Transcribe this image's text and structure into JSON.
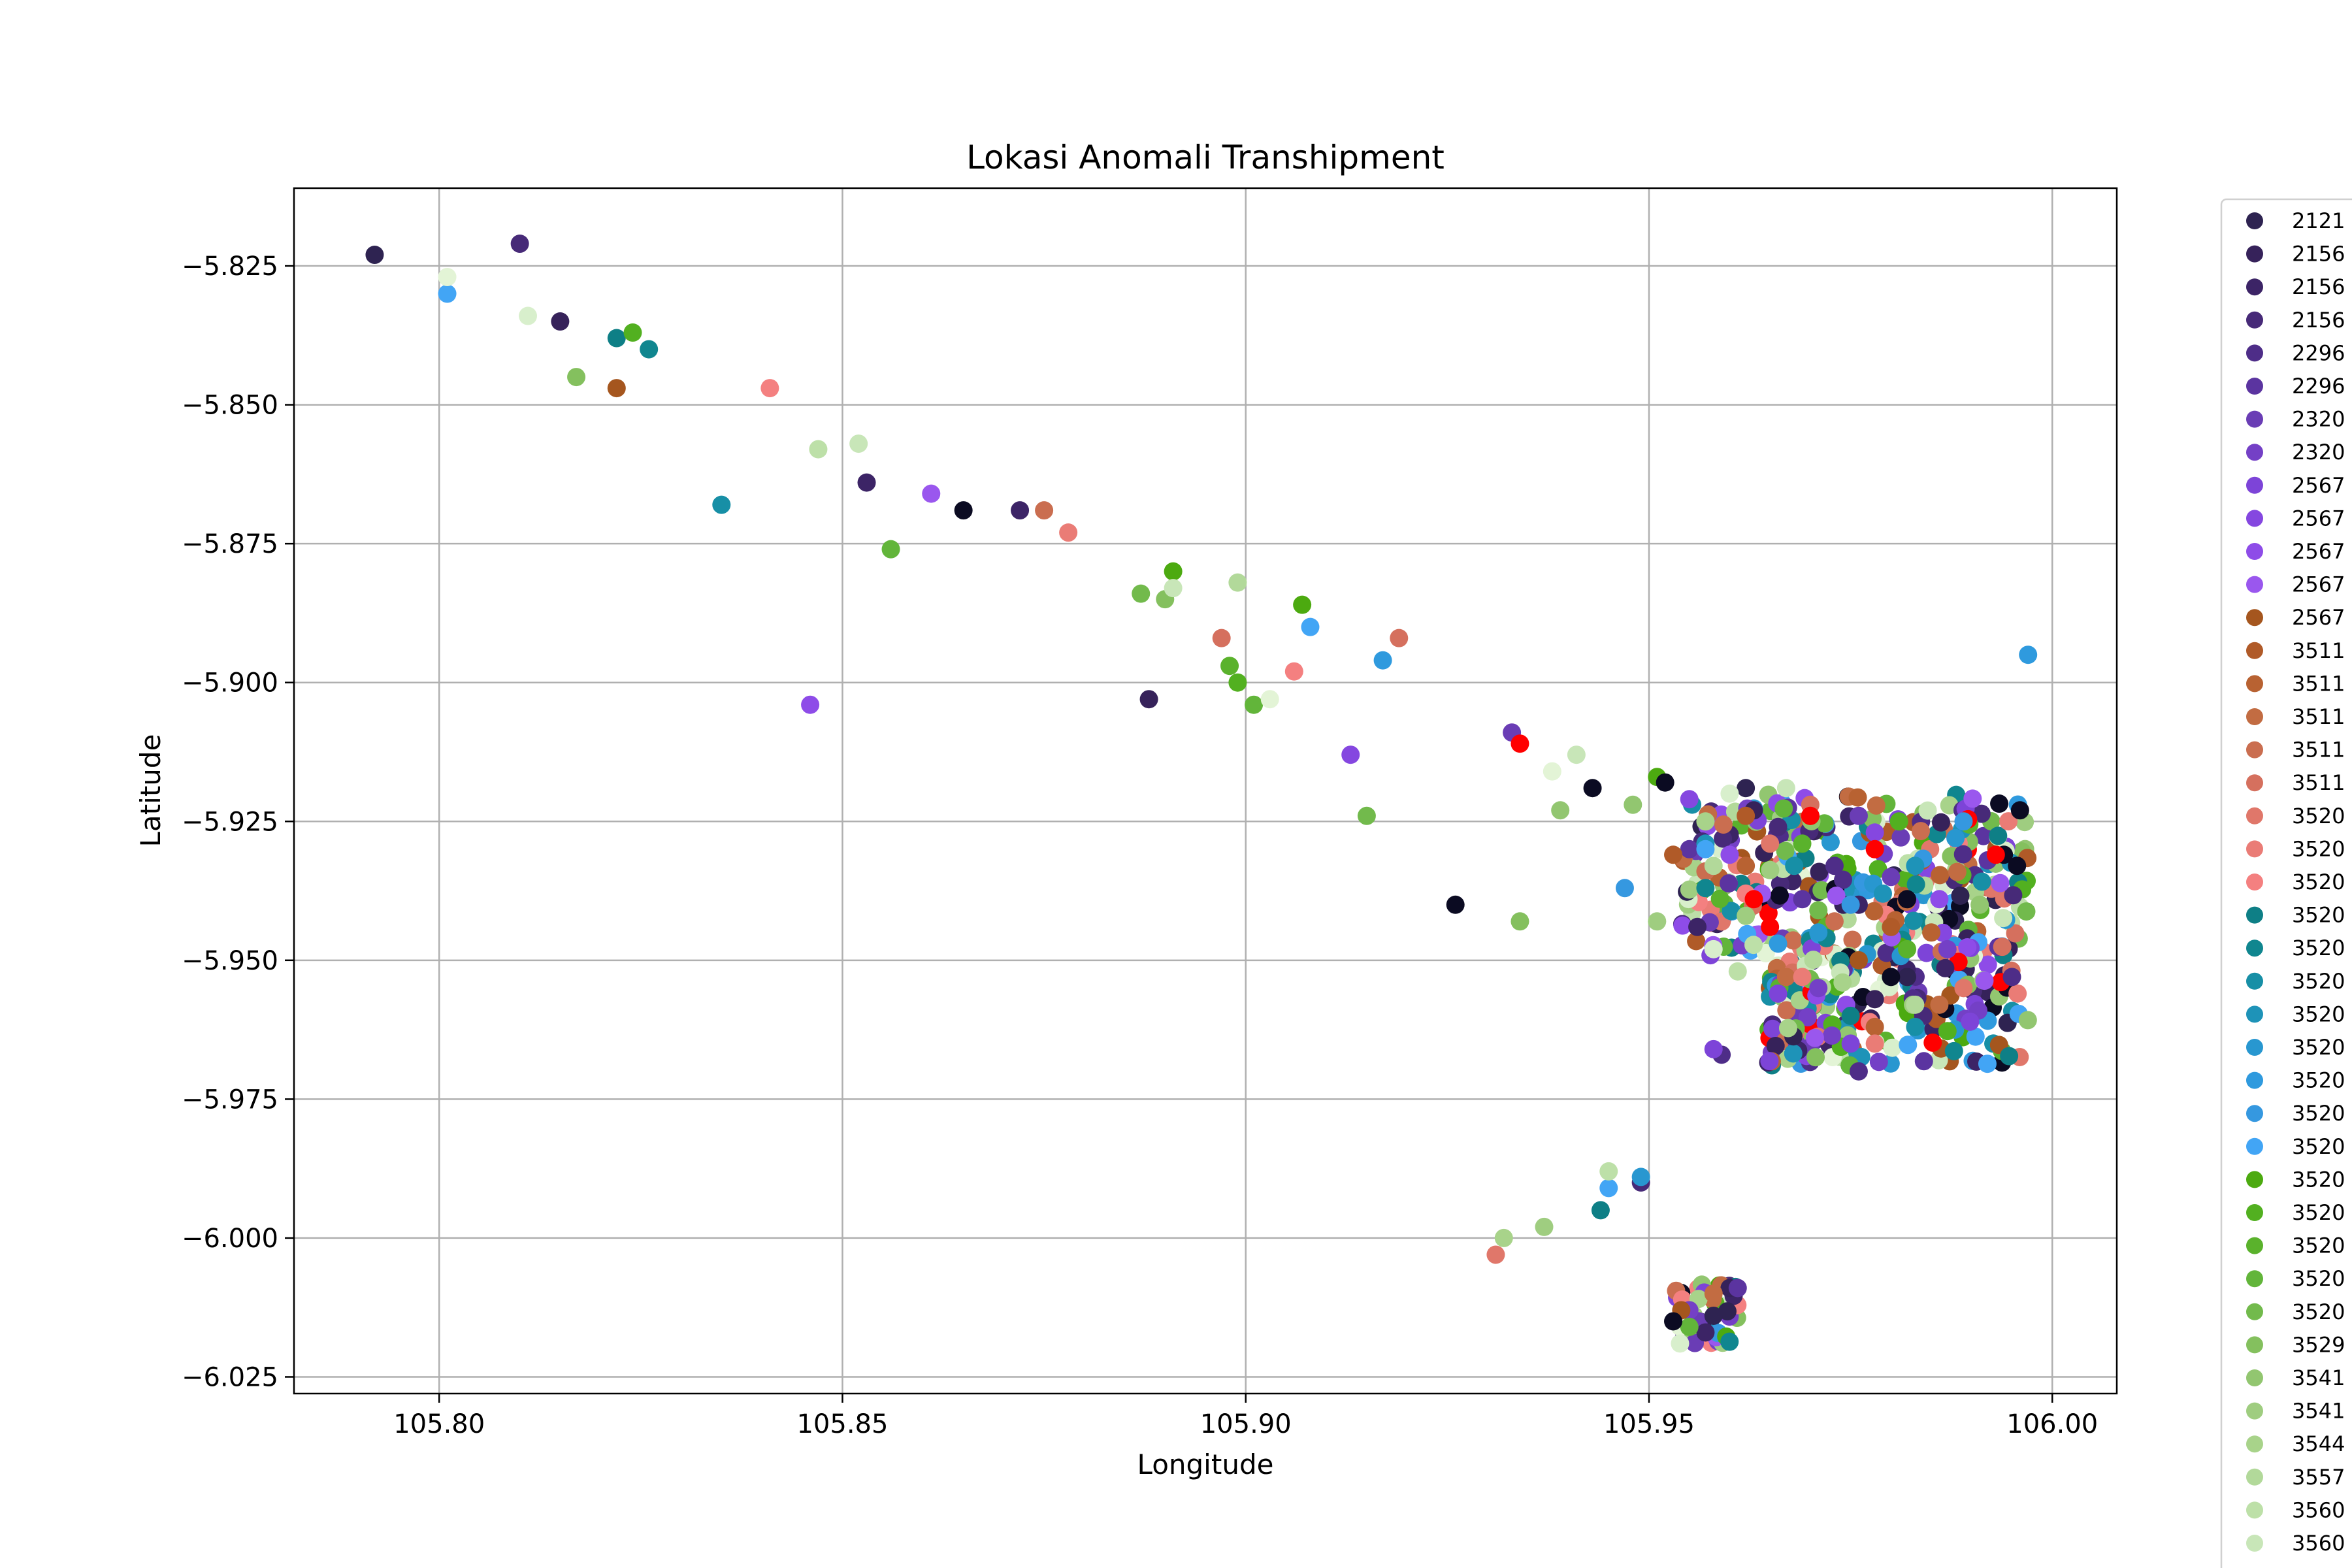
{
  "chart_data": {
    "type": "scatter",
    "title": "Lokasi Anomali Transhipment",
    "xlabel": "Longitude",
    "ylabel": "Latitude",
    "xlim": [
      105.782,
      106.008
    ],
    "ylim": [
      -6.028,
      -5.811
    ],
    "x_ticks": [
      105.8,
      105.85,
      105.9,
      105.95,
      106.0
    ],
    "x_tick_labels": [
      "105.80",
      "105.85",
      "105.90",
      "105.95",
      "106.00"
    ],
    "y_ticks": [
      -5.825,
      -5.85,
      -5.875,
      -5.9,
      -5.925,
      -5.95,
      -5.975,
      -6.0,
      -6.025
    ],
    "y_tick_labels": [
      "−5.825",
      "−5.850",
      "−5.875",
      "−5.900",
      "−5.925",
      "−5.950",
      "−5.975",
      "−6.000",
      "−6.025"
    ],
    "grid": true,
    "legend_position": "right, outside, clipped",
    "legend": [
      {
        "label": "2121",
        "color": "#2e2351"
      },
      {
        "label": "2156",
        "color": "#36225a"
      },
      {
        "label": "2156",
        "color": "#3c2466"
      },
      {
        "label": "2156",
        "color": "#472a78"
      },
      {
        "label": "2296",
        "color": "#4e2d88"
      },
      {
        "label": "2296",
        "color": "#5b34a0"
      },
      {
        "label": "2320",
        "color": "#6a3db5"
      },
      {
        "label": "2320",
        "color": "#7440c6"
      },
      {
        "label": "2567",
        "color": "#7d44d8"
      },
      {
        "label": "2567",
        "color": "#8547e0"
      },
      {
        "label": "2567",
        "color": "#8e4ce8"
      },
      {
        "label": "2567",
        "color": "#9a57ee"
      },
      {
        "label": "2567",
        "color": "#a5561e"
      },
      {
        "label": "3511",
        "color": "#b05a28"
      },
      {
        "label": "3511",
        "color": "#b86232"
      },
      {
        "label": "3511",
        "color": "#c26c42"
      },
      {
        "label": "3511",
        "color": "#ca6e50"
      },
      {
        "label": "3511",
        "color": "#d5705e"
      },
      {
        "label": "3520",
        "color": "#e0776a"
      },
      {
        "label": "3520",
        "color": "#ea7c76"
      },
      {
        "label": "3520",
        "color": "#f48080"
      },
      {
        "label": "3520",
        "color": "#0e7f86"
      },
      {
        "label": "3520",
        "color": "#10868f"
      },
      {
        "label": "3520",
        "color": "#178fa6"
      },
      {
        "label": "3520",
        "color": "#1e93b8"
      },
      {
        "label": "3520",
        "color": "#2897d0"
      },
      {
        "label": "3520",
        "color": "#2f9ade"
      },
      {
        "label": "3520",
        "color": "#3598e0"
      },
      {
        "label": "3520",
        "color": "#42a5f5"
      },
      {
        "label": "3520",
        "color": "#4caa10"
      },
      {
        "label": "3520",
        "color": "#52b020"
      },
      {
        "label": "3520",
        "color": "#5ab22c"
      },
      {
        "label": "3520",
        "color": "#62b53a"
      },
      {
        "label": "3520",
        "color": "#72ba4c"
      },
      {
        "label": "3529",
        "color": "#84c05e"
      },
      {
        "label": "3541",
        "color": "#92c670"
      },
      {
        "label": "3541",
        "color": "#9fcd80"
      },
      {
        "label": "3544",
        "color": "#a8d38a"
      },
      {
        "label": "3557",
        "color": "#b2d99a"
      },
      {
        "label": "3560",
        "color": "#bde0a8"
      },
      {
        "label": "3560",
        "color": "#c8e6b8"
      }
    ],
    "series": [
      {
        "color": "#2e2351",
        "points": [
          [
            105.792,
            -5.823
          ],
          [
            105.962,
            -5.919
          ],
          [
            105.972,
            -5.946
          ],
          [
            105.982,
            -5.953
          ],
          [
            105.958,
            -6.014
          ]
        ]
      },
      {
        "color": "#36225a",
        "points": [
          [
            105.815,
            -5.835
          ],
          [
            105.888,
            -5.903
          ],
          [
            105.963,
            -5.923
          ],
          [
            105.978,
            -5.957
          ],
          [
            105.96,
            -6.009
          ]
        ]
      },
      {
        "color": "#3c2466",
        "points": [
          [
            105.853,
            -5.864
          ],
          [
            105.872,
            -5.869
          ],
          [
            105.956,
            -5.944
          ],
          [
            105.976,
            -5.94
          ],
          [
            105.957,
            -6.017
          ]
        ]
      },
      {
        "color": "#472a78",
        "points": [
          [
            105.81,
            -5.821
          ],
          [
            105.949,
            -5.99
          ],
          [
            105.966,
            -5.926
          ],
          [
            105.984,
            -5.96
          ]
        ]
      },
      {
        "color": "#4e2d88",
        "points": [
          [
            105.959,
            -5.967
          ],
          [
            105.976,
            -5.97
          ],
          [
            105.973,
            -5.933
          ],
          [
            105.995,
            -5.953
          ]
        ]
      },
      {
        "color": "#5b34a0",
        "points": [
          [
            105.961,
            -6.009
          ],
          [
            105.955,
            -5.93
          ],
          [
            105.969,
            -5.939
          ],
          [
            105.992,
            -5.932
          ]
        ]
      },
      {
        "color": "#6a3db5",
        "points": [
          [
            105.933,
            -5.909
          ],
          [
            105.976,
            -5.924
          ],
          [
            105.98,
            -5.935
          ]
        ]
      },
      {
        "color": "#7440c6",
        "points": [
          [
            105.955,
            -6.013
          ],
          [
            105.971,
            -5.955
          ],
          [
            105.987,
            -5.948
          ]
        ]
      },
      {
        "color": "#7d44d8",
        "points": [
          [
            105.958,
            -5.966
          ],
          [
            105.966,
            -5.956
          ],
          [
            105.975,
            -5.965
          ]
        ]
      },
      {
        "color": "#8547e0",
        "points": [
          [
            105.913,
            -5.913
          ],
          [
            105.955,
            -5.921
          ],
          [
            105.978,
            -5.927
          ]
        ]
      },
      {
        "color": "#8e4ce8",
        "points": [
          [
            105.846,
            -5.904
          ],
          [
            105.96,
            -5.931
          ],
          [
            105.986,
            -5.939
          ]
        ]
      },
      {
        "color": "#9a57ee",
        "points": [
          [
            105.861,
            -5.866
          ],
          [
            105.964,
            -5.938
          ]
        ]
      },
      {
        "color": "#a5561e",
        "points": [
          [
            105.822,
            -5.847
          ],
          [
            105.954,
            -6.013
          ],
          [
            105.976,
            -5.95
          ]
        ]
      },
      {
        "color": "#b05a28",
        "points": [
          [
            105.953,
            -5.931
          ],
          [
            105.962,
            -5.924
          ],
          [
            105.98,
            -5.944
          ]
        ]
      },
      {
        "color": "#b86232",
        "points": [
          [
            105.962,
            -5.933
          ],
          [
            105.978,
            -5.962
          ],
          [
            105.985,
            -5.945
          ]
        ]
      },
      {
        "color": "#c26c42",
        "points": [
          [
            105.958,
            -6.01
          ],
          [
            105.967,
            -5.953
          ],
          [
            105.986,
            -5.958
          ]
        ]
      },
      {
        "color": "#ca6e50",
        "points": [
          [
            105.875,
            -5.869
          ],
          [
            105.957,
            -5.934
          ],
          [
            105.973,
            -5.943
          ]
        ]
      },
      {
        "color": "#d5705e",
        "points": [
          [
            105.897,
            -5.892
          ],
          [
            105.919,
            -5.892
          ],
          [
            105.97,
            -5.922
          ]
        ]
      },
      {
        "color": "#e0776a",
        "points": [
          [
            105.931,
            -6.003
          ],
          [
            105.965,
            -5.929
          ],
          [
            105.989,
            -5.955
          ]
        ]
      },
      {
        "color": "#ea7c76",
        "points": [
          [
            105.878,
            -5.873
          ],
          [
            105.978,
            -5.965
          ],
          [
            105.969,
            -5.953
          ]
        ]
      },
      {
        "color": "#f48080",
        "points": [
          [
            105.841,
            -5.847
          ],
          [
            105.906,
            -5.898
          ],
          [
            105.962,
            -5.938
          ]
        ]
      },
      {
        "color": "#0e7f86",
        "points": [
          [
            105.822,
            -5.838
          ],
          [
            105.944,
            -5.995
          ],
          [
            105.975,
            -5.96
          ]
        ]
      },
      {
        "color": "#10868f",
        "points": [
          [
            105.826,
            -5.84
          ],
          [
            105.957,
            -5.937
          ],
          [
            105.972,
            -5.946
          ]
        ]
      },
      {
        "color": "#178fa6",
        "points": [
          [
            105.835,
            -5.868
          ],
          [
            105.968,
            -5.933
          ],
          [
            105.983,
            -5.962
          ]
        ]
      },
      {
        "color": "#1e93b8",
        "points": [
          [
            105.957,
            -5.929
          ],
          [
            105.979,
            -5.938
          ],
          [
            105.983,
            -5.933
          ]
        ]
      },
      {
        "color": "#2897d0",
        "points": [
          [
            105.949,
            -5.989
          ],
          [
            105.971,
            -5.945
          ],
          [
            105.988,
            -5.928
          ]
        ]
      },
      {
        "color": "#2f9ade",
        "points": [
          [
            105.917,
            -5.896
          ],
          [
            105.966,
            -5.947
          ],
          [
            105.997,
            -5.895
          ]
        ]
      },
      {
        "color": "#3598e0",
        "points": [
          [
            105.947,
            -5.937
          ],
          [
            105.975,
            -5.94
          ],
          [
            105.989,
            -5.925
          ]
        ]
      },
      {
        "color": "#42a5f5",
        "points": [
          [
            105.801,
            -5.83
          ],
          [
            105.908,
            -5.89
          ],
          [
            105.945,
            -5.991
          ],
          [
            105.957,
            -5.93
          ]
        ]
      },
      {
        "color": "#4caa10",
        "points": [
          [
            105.891,
            -5.88
          ],
          [
            105.907,
            -5.886
          ],
          [
            105.951,
            -5.917
          ]
        ]
      },
      {
        "color": "#52b020",
        "points": [
          [
            105.824,
            -5.837
          ],
          [
            105.899,
            -5.9
          ],
          [
            105.981,
            -5.925
          ]
        ]
      },
      {
        "color": "#5ab22c",
        "points": [
          [
            105.898,
            -5.897
          ],
          [
            105.969,
            -5.929
          ],
          [
            105.982,
            -5.948
          ]
        ]
      },
      {
        "color": "#62b53a",
        "points": [
          [
            105.856,
            -5.876
          ],
          [
            105.901,
            -5.904
          ],
          [
            105.955,
            -6.016
          ]
        ]
      },
      {
        "color": "#72ba4c",
        "points": [
          [
            105.887,
            -5.884
          ],
          [
            105.915,
            -5.924
          ],
          [
            105.971,
            -5.941
          ]
        ]
      },
      {
        "color": "#84c05e",
        "points": [
          [
            105.817,
            -5.845
          ],
          [
            105.89,
            -5.885
          ],
          [
            105.934,
            -5.943
          ]
        ]
      },
      {
        "color": "#92c670",
        "points": [
          [
            105.939,
            -5.923
          ],
          [
            105.948,
            -5.922
          ],
          [
            105.991,
            -5.94
          ]
        ]
      },
      {
        "color": "#9fcd80",
        "points": [
          [
            105.951,
            -5.943
          ],
          [
            105.937,
            -5.998
          ],
          [
            105.962,
            -5.942
          ]
        ]
      },
      {
        "color": "#a8d38a",
        "points": [
          [
            105.932,
            -6.0
          ],
          [
            105.957,
            -5.925
          ],
          [
            105.974,
            -5.954
          ]
        ]
      },
      {
        "color": "#b2d99a",
        "points": [
          [
            105.899,
            -5.882
          ],
          [
            105.958,
            -5.933
          ],
          [
            105.983,
            -5.958
          ]
        ]
      },
      {
        "color": "#bde0a8",
        "points": [
          [
            105.847,
            -5.858
          ],
          [
            105.945,
            -5.988
          ],
          [
            105.961,
            -5.952
          ]
        ]
      },
      {
        "color": "#c8e6b8",
        "points": [
          [
            105.852,
            -5.857
          ],
          [
            105.891,
            -5.883
          ],
          [
            105.941,
            -5.913
          ],
          [
            105.967,
            -5.919
          ]
        ]
      },
      {
        "color": "#d8efcc",
        "points": [
          [
            105.811,
            -5.834
          ],
          [
            105.96,
            -5.92
          ],
          [
            105.958,
            -5.948
          ]
        ]
      },
      {
        "color": "#e3f4d6",
        "points": [
          [
            105.801,
            -5.827
          ],
          [
            105.903,
            -5.903
          ],
          [
            105.938,
            -5.916
          ]
        ]
      },
      {
        "color": "#0b0b22",
        "points": [
          [
            105.865,
            -5.869
          ],
          [
            105.926,
            -5.94
          ],
          [
            105.943,
            -5.919
          ],
          [
            105.952,
            -5.918
          ],
          [
            105.996,
            -5.923
          ],
          [
            105.994,
            -5.931
          ],
          [
            105.953,
            -6.015
          ],
          [
            105.982,
            -5.939
          ],
          [
            105.98,
            -5.953
          ]
        ]
      },
      {
        "color": "#ff0000",
        "points": [
          [
            105.934,
            -5.911
          ],
          [
            105.963,
            -5.939
          ],
          [
            105.965,
            -5.944
          ],
          [
            105.97,
            -5.924
          ],
          [
            105.978,
            -5.93
          ],
          [
            105.993,
            -5.931
          ]
        ]
      }
    ],
    "cluster": {
      "x": [
        105.954,
        105.997
      ],
      "y": [
        -5.969,
        -5.92
      ],
      "count": 520
    },
    "cluster_small": {
      "x": [
        105.953,
        105.961
      ],
      "y": [
        -6.019,
        -6.008
      ],
      "count": 40
    }
  }
}
